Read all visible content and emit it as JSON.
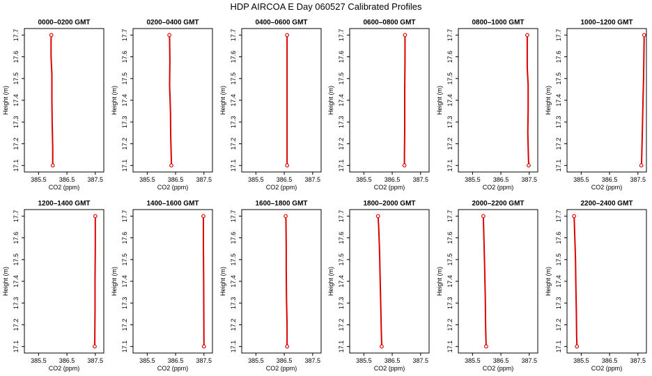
{
  "title": "HDP  AIRCOA E  Day 060527  Calibrated Profiles",
  "chart_data": {
    "type": "line",
    "layout": "2 rows x 6 columns of panels",
    "xlabel": "CO2 (ppm)",
    "ylabel": "Height (m)",
    "xlim": [
      385.0,
      387.8
    ],
    "ylim": [
      17.07,
      17.73
    ],
    "xticks": [
      385.5,
      386.5,
      387.5
    ],
    "xtick_labels": [
      "385.5",
      "386.5",
      "387.5"
    ],
    "yticks": [
      17.1,
      17.2,
      17.3,
      17.4,
      17.5,
      17.6,
      17.7
    ],
    "ytick_labels": [
      "17.1",
      "17.2",
      "17.3",
      "17.4",
      "17.5",
      "17.6",
      "17.7"
    ],
    "line_color": "#dd0000",
    "marker_color": "#dd0000",
    "panels": [
      {
        "title": "0000–0200 GMT",
        "endpoints": [
          {
            "x": 385.95,
            "y": 17.7
          },
          {
            "x": 386.0,
            "y": 17.1
          }
        ],
        "profile": [
          [
            385.95,
            17.7
          ],
          [
            385.94,
            17.68
          ],
          [
            385.94,
            17.6
          ],
          [
            385.97,
            17.52
          ],
          [
            385.97,
            17.4
          ],
          [
            385.98,
            17.3
          ],
          [
            386.0,
            17.18
          ],
          [
            386.0,
            17.1
          ]
        ]
      },
      {
        "title": "0200–0400 GMT",
        "endpoints": [
          {
            "x": 386.28,
            "y": 17.7
          },
          {
            "x": 386.35,
            "y": 17.1
          }
        ],
        "profile": [
          [
            386.28,
            17.7
          ],
          [
            386.29,
            17.68
          ],
          [
            386.3,
            17.58
          ],
          [
            386.29,
            17.47
          ],
          [
            386.32,
            17.35
          ],
          [
            386.33,
            17.23
          ],
          [
            386.35,
            17.12
          ],
          [
            386.35,
            17.1
          ]
        ]
      },
      {
        "title": "0400–0600 GMT",
        "endpoints": [
          {
            "x": 386.6,
            "y": 17.7
          },
          {
            "x": 386.6,
            "y": 17.1
          }
        ],
        "profile": [
          [
            386.6,
            17.7
          ],
          [
            386.6,
            17.1
          ]
        ]
      },
      {
        "title": "0600–0800 GMT",
        "endpoints": [
          {
            "x": 386.95,
            "y": 17.7
          },
          {
            "x": 386.93,
            "y": 17.1
          }
        ],
        "profile": [
          [
            386.95,
            17.7
          ],
          [
            386.95,
            17.68
          ],
          [
            386.95,
            17.58
          ],
          [
            386.94,
            17.45
          ],
          [
            386.94,
            17.26
          ],
          [
            386.93,
            17.15
          ],
          [
            386.93,
            17.1
          ]
        ]
      },
      {
        "title": "0800–1000 GMT",
        "endpoints": [
          {
            "x": 387.43,
            "y": 17.7
          },
          {
            "x": 387.48,
            "y": 17.1
          }
        ],
        "profile": [
          [
            387.43,
            17.7
          ],
          [
            387.43,
            17.68
          ],
          [
            387.43,
            17.55
          ],
          [
            387.46,
            17.47
          ],
          [
            387.46,
            17.36
          ],
          [
            387.45,
            17.25
          ],
          [
            387.47,
            17.14
          ],
          [
            387.48,
            17.1
          ]
        ]
      },
      {
        "title": "1000–1200 GMT",
        "endpoints": [
          {
            "x": 387.72,
            "y": 17.7
          },
          {
            "x": 387.62,
            "y": 17.1
          }
        ],
        "profile": [
          [
            387.72,
            17.7
          ],
          [
            387.72,
            17.68
          ],
          [
            387.7,
            17.5
          ],
          [
            387.68,
            17.4
          ],
          [
            387.66,
            17.28
          ],
          [
            387.63,
            17.12
          ],
          [
            387.62,
            17.1
          ]
        ]
      },
      {
        "title": "1200–1400 GMT",
        "endpoints": [
          {
            "x": 387.5,
            "y": 17.7
          },
          {
            "x": 387.48,
            "y": 17.1
          }
        ],
        "profile": [
          [
            387.5,
            17.7
          ],
          [
            387.5,
            17.55
          ],
          [
            387.49,
            17.4
          ],
          [
            387.49,
            17.26
          ],
          [
            387.48,
            17.1
          ]
        ]
      },
      {
        "title": "1400–1600 GMT",
        "endpoints": [
          {
            "x": 387.48,
            "y": 17.7
          },
          {
            "x": 387.5,
            "y": 17.1
          }
        ],
        "profile": [
          [
            387.48,
            17.7
          ],
          [
            387.48,
            17.56
          ],
          [
            387.49,
            17.4
          ],
          [
            387.5,
            17.1
          ]
        ]
      },
      {
        "title": "1600–1800 GMT",
        "endpoints": [
          {
            "x": 386.55,
            "y": 17.7
          },
          {
            "x": 386.6,
            "y": 17.1
          }
        ],
        "profile": [
          [
            386.55,
            17.7
          ],
          [
            386.56,
            17.68
          ],
          [
            386.57,
            17.56
          ],
          [
            386.57,
            17.45
          ],
          [
            386.58,
            17.32
          ],
          [
            386.6,
            17.2
          ],
          [
            386.6,
            17.1
          ]
        ]
      },
      {
        "title": "1800–2000 GMT",
        "endpoints": [
          {
            "x": 386.0,
            "y": 17.7
          },
          {
            "x": 386.13,
            "y": 17.1
          }
        ],
        "profile": [
          [
            386.0,
            17.7
          ],
          [
            386.02,
            17.66
          ],
          [
            386.05,
            17.55
          ],
          [
            386.07,
            17.43
          ],
          [
            386.09,
            17.32
          ],
          [
            386.11,
            17.2
          ],
          [
            386.13,
            17.1
          ]
        ]
      },
      {
        "title": "2000–2200 GMT",
        "endpoints": [
          {
            "x": 385.88,
            "y": 17.7
          },
          {
            "x": 385.98,
            "y": 17.1
          }
        ],
        "profile": [
          [
            385.88,
            17.7
          ],
          [
            385.89,
            17.66
          ],
          [
            385.91,
            17.55
          ],
          [
            385.93,
            17.44
          ],
          [
            385.95,
            17.32
          ],
          [
            385.96,
            17.2
          ],
          [
            385.98,
            17.1
          ]
        ]
      },
      {
        "title": "2200–2400 GMT",
        "endpoints": [
          {
            "x": 385.25,
            "y": 17.7
          },
          {
            "x": 385.35,
            "y": 17.1
          }
        ],
        "profile": [
          [
            385.25,
            17.7
          ],
          [
            385.27,
            17.62
          ],
          [
            385.3,
            17.5
          ],
          [
            385.31,
            17.4
          ],
          [
            385.33,
            17.26
          ],
          [
            385.34,
            17.15
          ],
          [
            385.35,
            17.1
          ]
        ]
      }
    ]
  }
}
